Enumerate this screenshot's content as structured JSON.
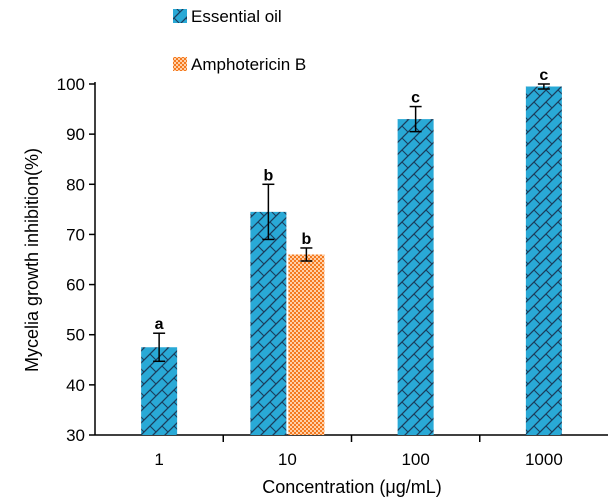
{
  "chart_data": {
    "type": "bar",
    "xlabel": "Concentration (μg/mL)",
    "ylabel": "Mycelia growth inhibition(%)",
    "ylim": [
      30,
      100
    ],
    "yticks": [
      30,
      40,
      50,
      60,
      70,
      80,
      90,
      100
    ],
    "categories": [
      "1",
      "10",
      "100",
      "1000"
    ],
    "legend_position": "top-left",
    "grid": false,
    "series": [
      {
        "name": "Essential oil",
        "color": "#29a9d6",
        "pattern": "brick-hatch",
        "values": [
          47.5,
          74.5,
          93,
          99.5
        ],
        "errors": [
          2.8,
          5.5,
          2.5,
          0.5
        ],
        "labels": [
          "a",
          "b",
          "c",
          "c"
        ]
      },
      {
        "name": "Amphotericin B",
        "color": "#f47a20",
        "pattern": "checker",
        "values": [
          null,
          66,
          null,
          null
        ],
        "errors": [
          null,
          1.3,
          null,
          null
        ],
        "labels": [
          null,
          "b",
          null,
          null
        ]
      }
    ]
  }
}
